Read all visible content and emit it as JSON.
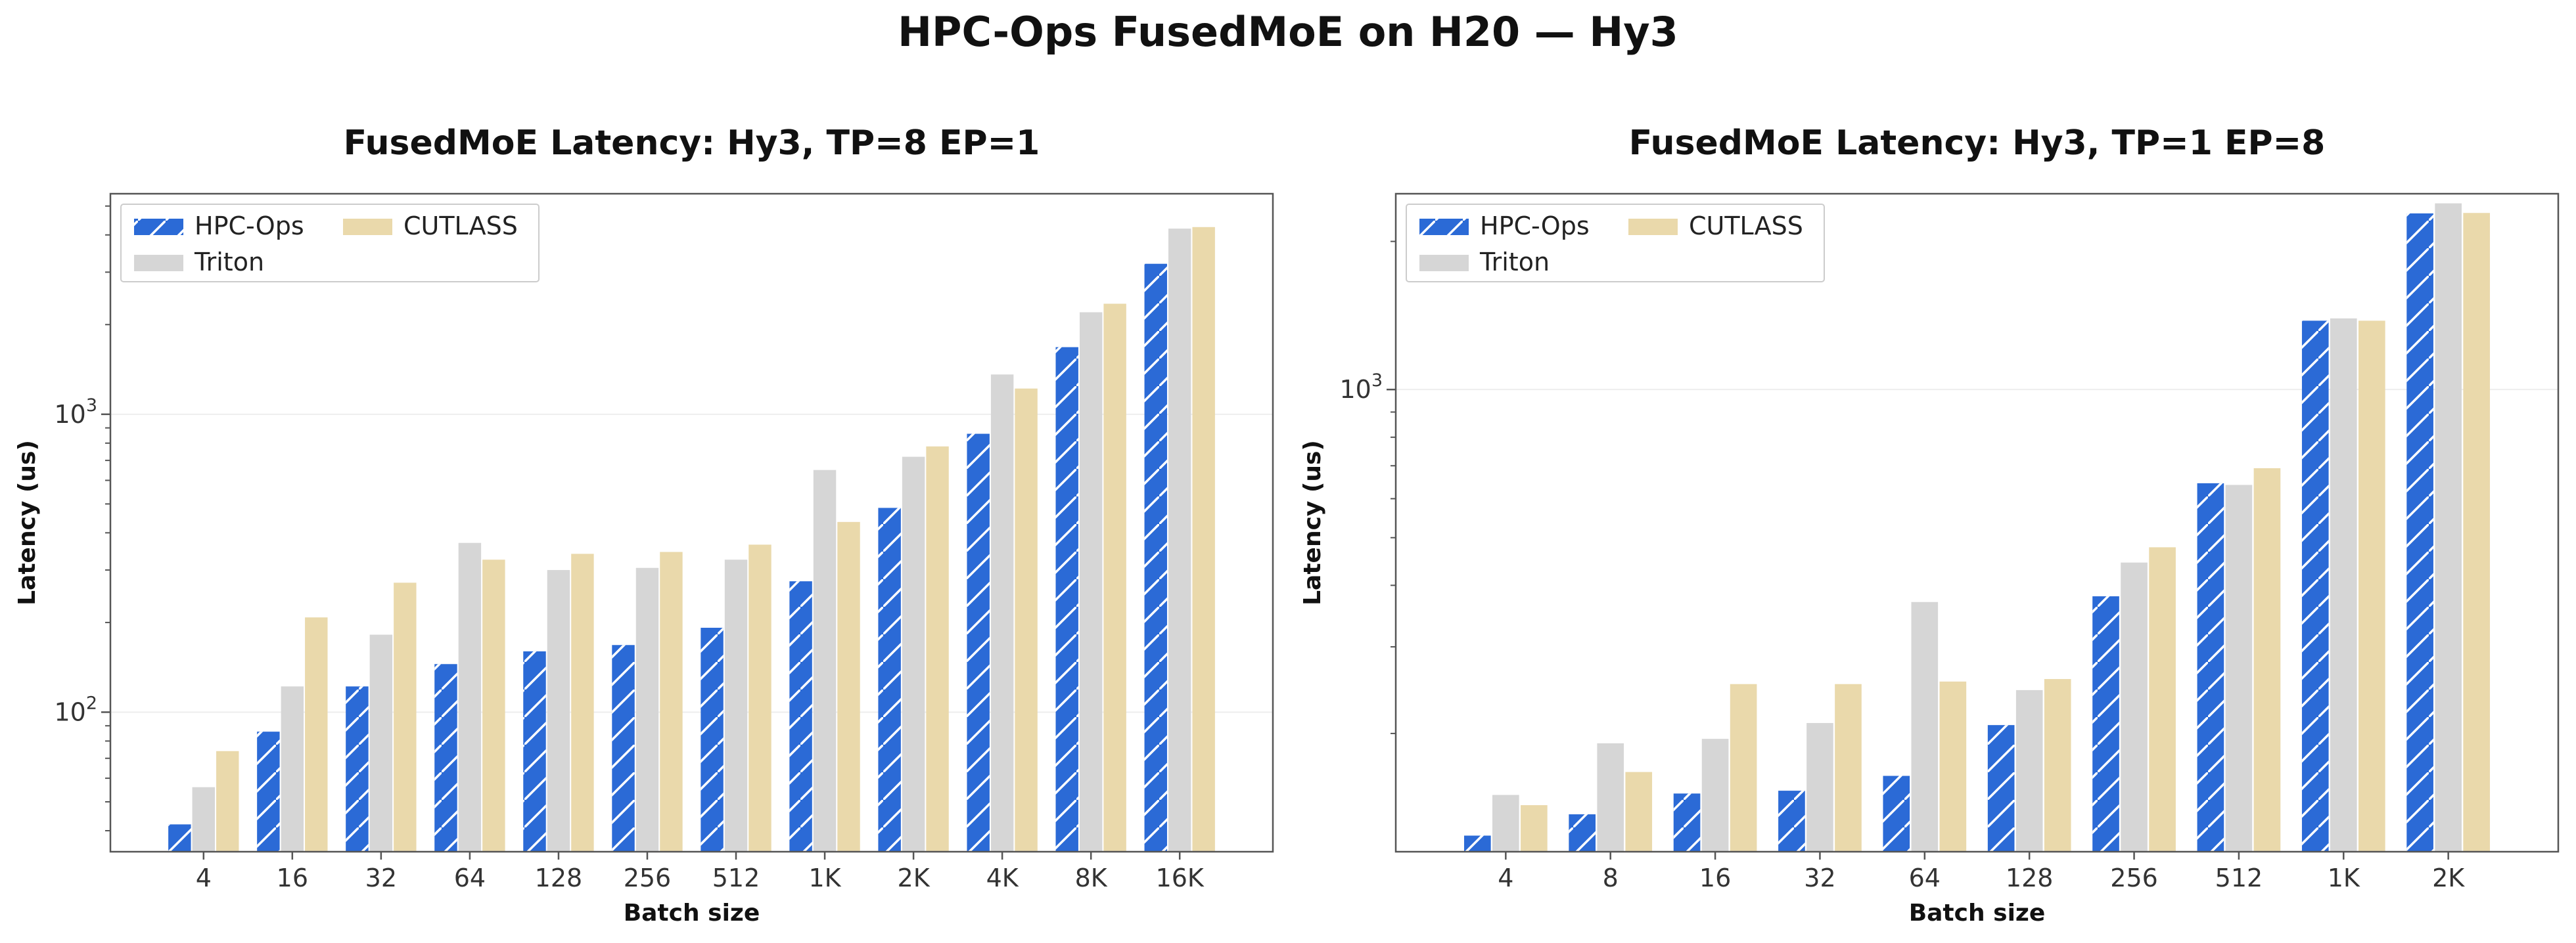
{
  "suptitle": "HPC-Ops FusedMoE on H20 — Hy3",
  "colors": {
    "HPC-Ops": "#2b6ad6",
    "Triton": "#d6d6d6",
    "CUTLASS": "#ead9ab"
  },
  "chart_data": [
    {
      "type": "bar",
      "title": "FusedMoE Latency: Hy3, TP=8 EP=1",
      "xlabel": "Batch size",
      "ylabel": "Latency (us)",
      "yscale": "log",
      "ylim": [
        34,
        5500
      ],
      "ytick_labels": [
        {
          "base": "10",
          "exp": "2",
          "value": 100
        },
        {
          "base": "10",
          "exp": "3",
          "value": 1000
        }
      ],
      "legend": "upper-left",
      "categories": [
        "4",
        "16",
        "32",
        "64",
        "128",
        "256",
        "512",
        "1K",
        "2K",
        "4K",
        "8K",
        "16K"
      ],
      "series": [
        {
          "name": "HPC-Ops",
          "values": [
            42,
            86,
            122,
            145,
            160,
            168,
            192,
            275,
            485,
            860,
            1680,
            3200
          ]
        },
        {
          "name": "Triton",
          "values": [
            56,
            122,
            182,
            370,
            300,
            305,
            325,
            650,
            720,
            1360,
            2200,
            4200
          ]
        },
        {
          "name": "CUTLASS",
          "values": [
            74,
            208,
            272,
            325,
            340,
            345,
            365,
            435,
            780,
            1220,
            2350,
            4250
          ]
        }
      ]
    },
    {
      "type": "bar",
      "title": "FusedMoE Latency: Hy3, TP=1 EP=8",
      "xlabel": "Batch size",
      "ylabel": "Latency (us)",
      "yscale": "log",
      "ylim": [
        115,
        2500
      ],
      "ytick_labels": [
        {
          "base": "10",
          "exp": "3",
          "value": 1000
        }
      ],
      "legend": "upper-left",
      "categories": [
        "4",
        "8",
        "16",
        "32",
        "64",
        "128",
        "256",
        "512",
        "1K",
        "2K"
      ],
      "series": [
        {
          "name": "HPC-Ops",
          "values": [
            124,
            137,
            151,
            153,
            164,
            208,
            380,
            645,
            1380,
            2280
          ]
        },
        {
          "name": "Triton",
          "values": [
            150,
            191,
            195,
            210,
            370,
            245,
            445,
            640,
            1395,
            2390
          ]
        },
        {
          "name": "CUTLASS",
          "values": [
            143,
            167,
            252,
            252,
            255,
            258,
            478,
            692,
            1380,
            2285
          ]
        }
      ]
    }
  ]
}
